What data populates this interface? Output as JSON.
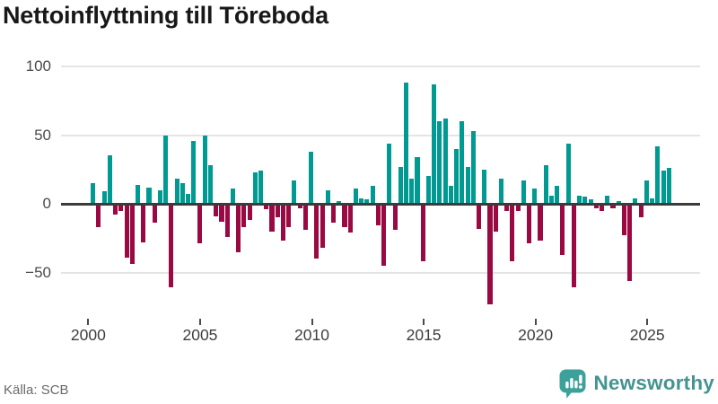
{
  "title": "Nettoinflyttning till Töreboda",
  "footer": {
    "source": "Källa: SCB"
  },
  "branding": {
    "name": "Newsworthy",
    "icon": "newsworthy-bubble-chart-icon"
  },
  "colors": {
    "positive_bar": "#009a93",
    "negative_bar": "#9b0943",
    "gridline": "#e4e4e4",
    "zero_line": "#3b3b3b",
    "title_text": "#181818",
    "axis_text": "#4a4a4a",
    "source_text": "#6a6a6a",
    "logo_bubble": "#3da19b",
    "logo_text": "#45948f"
  },
  "chart_data": {
    "type": "bar",
    "title": "Nettoinflyttning till Töreboda",
    "x_unit": "quarter",
    "grid": true,
    "legend": false,
    "ylim": [
      -80,
      110
    ],
    "y_ticks": [
      100,
      50,
      0,
      -50
    ],
    "y_tick_labels": [
      "100",
      "50",
      "0",
      "−50"
    ],
    "x_tick_labels": [
      "2000",
      "2005",
      "2010",
      "2015",
      "2020",
      "2025"
    ],
    "categories": [
      "2000 Q1",
      "2000 Q2",
      "2000 Q3",
      "2000 Q4",
      "2001 Q1",
      "2001 Q2",
      "2001 Q3",
      "2001 Q4",
      "2002 Q1",
      "2002 Q2",
      "2002 Q3",
      "2002 Q4",
      "2003 Q1",
      "2003 Q2",
      "2003 Q3",
      "2003 Q4",
      "2004 Q1",
      "2004 Q2",
      "2004 Q3",
      "2004 Q4",
      "2005 Q1",
      "2005 Q2",
      "2005 Q3",
      "2005 Q4",
      "2006 Q1",
      "2006 Q2",
      "2006 Q3",
      "2006 Q4",
      "2007 Q1",
      "2007 Q2",
      "2007 Q3",
      "2007 Q4",
      "2008 Q1",
      "2008 Q2",
      "2008 Q3",
      "2008 Q4",
      "2009 Q1",
      "2009 Q2",
      "2009 Q3",
      "2009 Q4",
      "2010 Q1",
      "2010 Q2",
      "2010 Q3",
      "2010 Q4",
      "2011 Q1",
      "2011 Q2",
      "2011 Q3",
      "2011 Q4",
      "2012 Q1",
      "2012 Q2",
      "2012 Q3",
      "2012 Q4",
      "2013 Q1",
      "2013 Q2",
      "2013 Q3",
      "2013 Q4",
      "2014 Q1",
      "2014 Q2",
      "2014 Q3",
      "2014 Q4",
      "2015 Q1",
      "2015 Q2",
      "2015 Q3",
      "2015 Q4",
      "2016 Q1",
      "2016 Q2",
      "2016 Q3",
      "2016 Q4",
      "2017 Q1",
      "2017 Q2",
      "2017 Q3",
      "2017 Q4",
      "2018 Q1",
      "2018 Q2",
      "2018 Q3",
      "2018 Q4",
      "2019 Q1",
      "2019 Q2",
      "2019 Q3",
      "2019 Q4",
      "2020 Q1",
      "2020 Q2",
      "2020 Q3",
      "2020 Q4",
      "2021 Q1",
      "2021 Q2",
      "2021 Q3",
      "2021 Q4",
      "2022 Q1",
      "2022 Q2",
      "2022 Q3",
      "2022 Q4",
      "2023 Q1",
      "2023 Q2",
      "2023 Q3",
      "2023 Q4",
      "2024 Q1",
      "2024 Q2",
      "2024 Q3",
      "2024 Q4",
      "2025 Q1",
      "2025 Q2",
      "2025 Q3",
      "2025 Q4"
    ],
    "values": [
      15,
      -17,
      9,
      35,
      -8,
      -5,
      -39,
      -44,
      14,
      -28,
      12,
      -14,
      10,
      50,
      -61,
      18,
      15,
      7,
      46,
      -29,
      50,
      28,
      -9,
      -13,
      -24,
      11,
      -35,
      -17,
      -12,
      23,
      24,
      -4,
      -20,
      -10,
      -27,
      -17,
      17,
      -3,
      -19,
      38,
      -40,
      -32,
      10,
      -14,
      2,
      -17,
      -21,
      11,
      4,
      3,
      13,
      -16,
      -45,
      44,
      -19,
      27,
      88,
      18,
      34,
      -42,
      20,
      87,
      60,
      62,
      13,
      40,
      60,
      27,
      53,
      -18,
      25,
      -73,
      -20,
      18,
      -5,
      -42,
      -5,
      17,
      -29,
      11,
      -27,
      28,
      6,
      13,
      -37,
      44,
      -61,
      6,
      5,
      3,
      -3,
      -5,
      6,
      -3,
      2,
      -23,
      -56,
      4,
      -10,
      17,
      4,
      42,
      24,
      26
    ]
  }
}
